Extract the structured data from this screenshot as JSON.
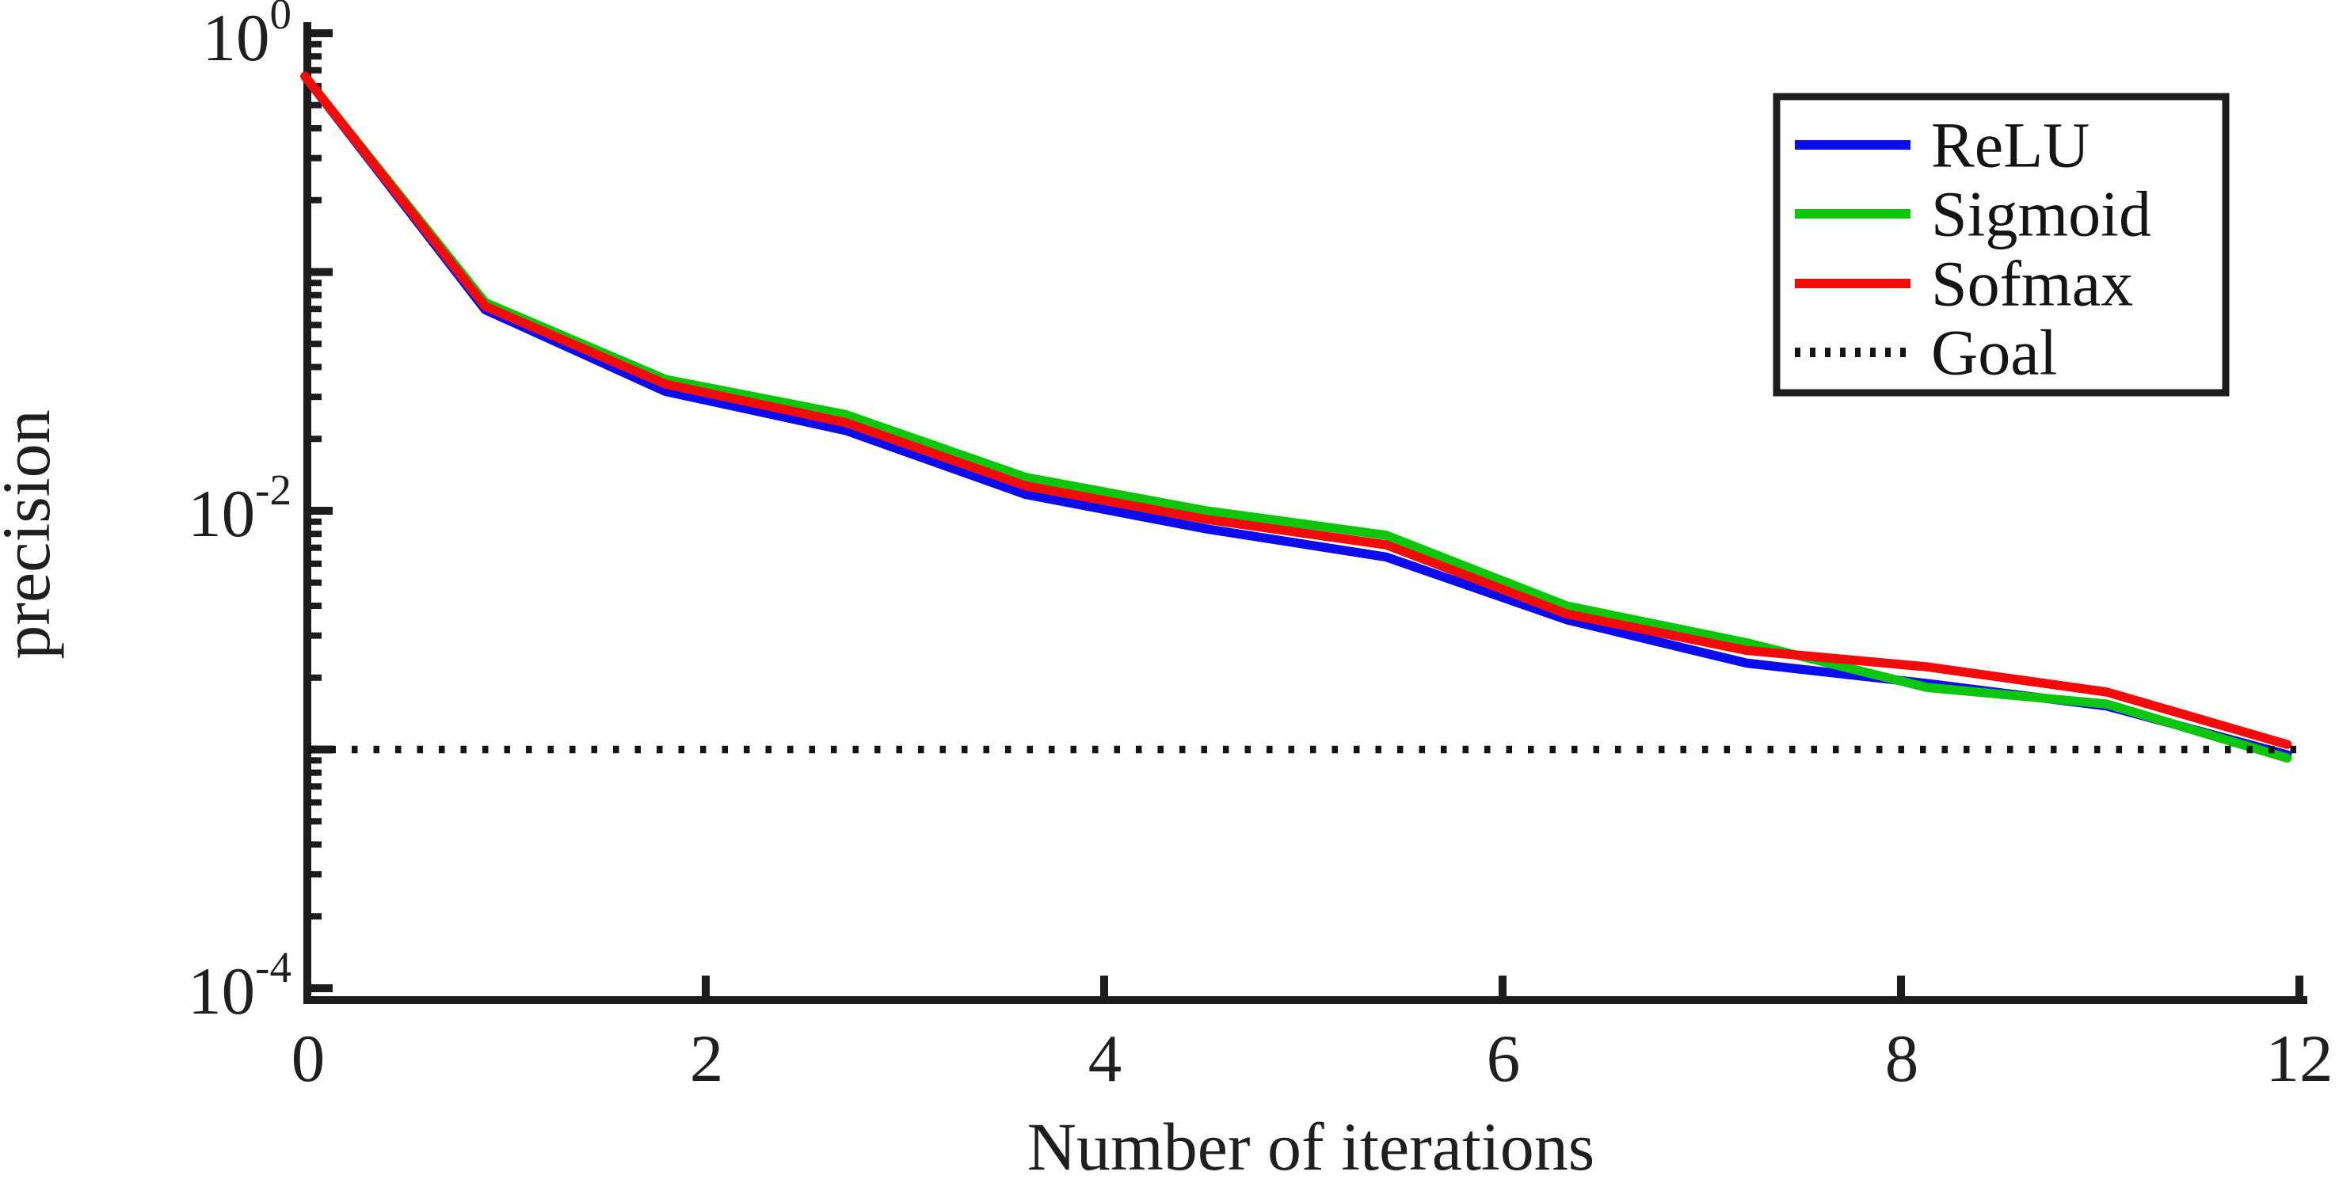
{
  "chart_data": {
    "type": "line",
    "title": "",
    "xlabel": "Number of iterations",
    "ylabel": "precision",
    "x_axis": {
      "tick_labels": [
        "0",
        "2",
        "4",
        "6",
        "8",
        "12"
      ]
    },
    "y_axis": {
      "scale": "log",
      "decades_span": 4,
      "tick_labels": [
        {
          "base": "10",
          "exp": "0"
        },
        {
          "base": "10",
          "exp": "-2"
        },
        {
          "base": "10",
          "exp": "-4"
        }
      ]
    },
    "x": [
      0,
      1,
      2,
      3,
      4,
      5,
      6,
      7,
      8,
      9,
      10,
      11
    ],
    "series": [
      {
        "name": "ReLU",
        "color": "#0b0bf0",
        "style": "solid",
        "values": [
          0.66,
          0.0695,
          0.0316,
          0.0217,
          0.0117,
          0.0084,
          0.0064,
          0.0035,
          0.0023,
          0.00189,
          0.00152,
          0.00095
        ]
      },
      {
        "name": "Sigmoid",
        "color": "#0cc60c",
        "style": "solid",
        "values": [
          0.66,
          0.0745,
          0.0355,
          0.0253,
          0.0138,
          0.01,
          0.0079,
          0.004,
          0.0028,
          0.00182,
          0.00155,
          0.00092
        ]
      },
      {
        "name": "Sofmax",
        "color": "#f50a0a",
        "style": "solid",
        "values": [
          0.66,
          0.0718,
          0.0339,
          0.0234,
          0.0127,
          0.0092,
          0.0072,
          0.0037,
          0.0026,
          0.00222,
          0.00174,
          0.00105
        ]
      },
      {
        "name": "Goal",
        "color": "#141414",
        "style": "dotted",
        "constant": 0.001
      }
    ],
    "legend_position": "top-right",
    "grid": false,
    "axis_color": "#1c1c1c",
    "background": "#ffffff"
  }
}
